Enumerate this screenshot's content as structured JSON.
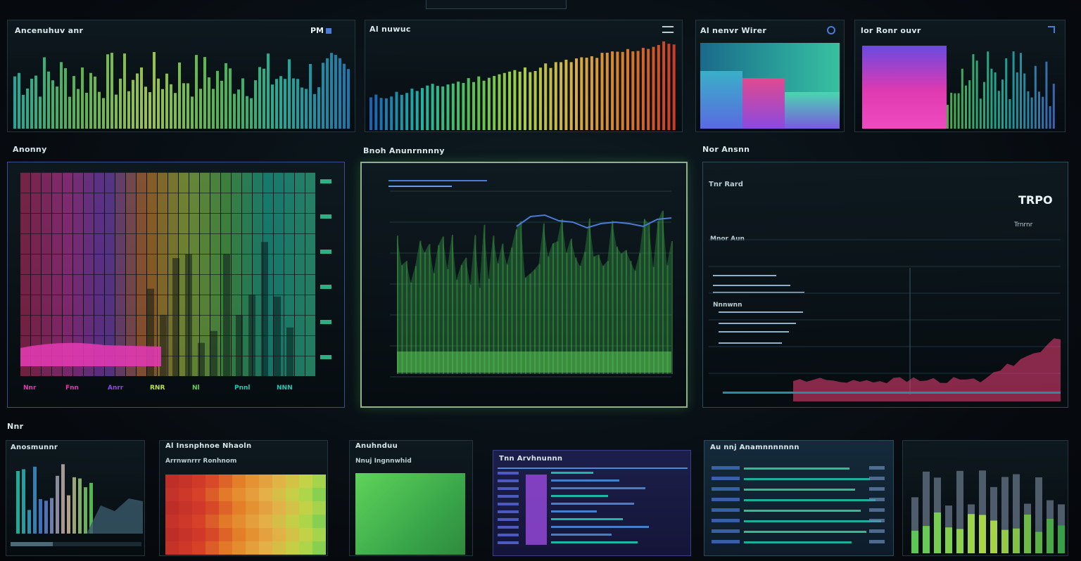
{
  "colors": {
    "background": "#070b10",
    "panel_border": "#23353d",
    "highlight_border": "#8fb08a",
    "teal": "#1fc8b0",
    "green": "#5fd35a",
    "lime": "#b9e24a",
    "magenta": "#e03ab0",
    "purple": "#8a4ae0",
    "blue": "#4a7bd8",
    "orange": "#f08a2a",
    "red": "#e0402a"
  },
  "panels": {
    "p1": {
      "title": "Ancenuhuv anr",
      "stat": "PM"
    },
    "p2": {
      "title": "Al nuwuc"
    },
    "p3": {
      "title": "Al nenvr Wirer"
    },
    "p4": {
      "title": "lor Ronr ouvr"
    },
    "p5": {
      "title": "Anonny"
    },
    "p6": {
      "title": "Bnoh Anunrnnnny"
    },
    "p7": {
      "title": "Nor Ansnn",
      "stat": "TRPO",
      "sub": "Trnrnr",
      "subtitle": "Tnr Rard",
      "sections": [
        "Mnor Aun",
        "Nnnwnn"
      ]
    },
    "section_footer": {
      "label": "Nnr"
    },
    "b1": {
      "title": "Anosmunnr"
    },
    "b2": {
      "title": "Al Insnphnoe  Nhaoln",
      "subtitle": "Arrnwnrrr Ronhnom"
    },
    "b3": {
      "title": "Anuhnduu",
      "subtitle": "Nnuj Ingnnwhid"
    },
    "b4": {
      "title": "Tnn Arvhnunnn"
    },
    "b5": {
      "title": "Au nnj Anamnnnnnnn"
    }
  },
  "legend": [
    {
      "label": "Nnr",
      "color": "#e03ab0"
    },
    {
      "label": "Fnn",
      "color": "#e03ab0"
    },
    {
      "label": "Anrr",
      "color": "#8a4ae0"
    },
    {
      "label": "RNR",
      "color": "#b9e24a"
    },
    {
      "label": "Nl",
      "color": "#5fd35a"
    },
    {
      "label": "Pnnl",
      "color": "#1fc8b0"
    },
    {
      "label": "NNN",
      "color": "#1fc8b0"
    }
  ]
}
